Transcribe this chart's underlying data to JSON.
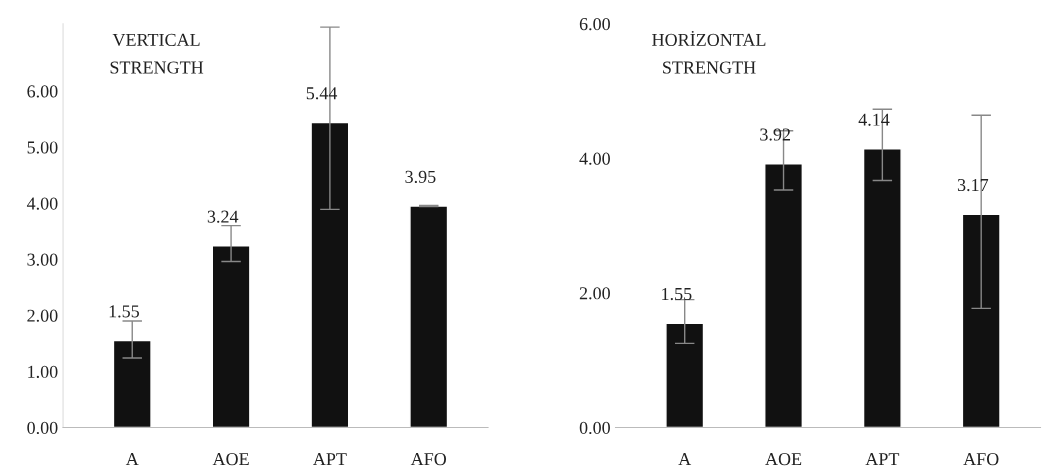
{
  "chart_data": [
    {
      "type": "bar",
      "title": "VERTICAL\nSTRENGTH",
      "categories": [
        "A",
        "AOE",
        "APT",
        "AFO"
      ],
      "values": [
        1.55,
        3.24,
        5.44,
        3.95
      ],
      "color": "#111111",
      "errors": [
        [
          1.24,
          1.9
        ],
        [
          2.96,
          3.6
        ],
        [
          3.89,
          7.14
        ],
        [
          3.94,
          3.96
        ]
      ],
      "data_labels": true,
      "ylim": [
        0,
        7.2
      ],
      "yticks": [
        {
          "value": 0,
          "label": "0.00"
        },
        {
          "value": 1,
          "label": "1.00"
        },
        {
          "value": 2,
          "label": "2.00"
        },
        {
          "value": 3,
          "label": "3.00"
        },
        {
          "value": 4,
          "label": "4.00"
        },
        {
          "value": 5,
          "label": "5.00"
        },
        {
          "value": 6,
          "label": "6.00"
        }
      ],
      "grid": false,
      "legend": false
    },
    {
      "type": "bar",
      "title": "HORİZONTAL\nSTRENGTH",
      "categories": [
        "A",
        "AOE",
        "APT",
        "AFO"
      ],
      "values": [
        1.55,
        3.92,
        4.14,
        3.17
      ],
      "color": "#111111",
      "errors": [
        [
          1.25,
          1.9
        ],
        [
          3.53,
          4.41
        ],
        [
          3.67,
          4.73
        ],
        [
          1.77,
          4.64
        ]
      ],
      "data_labels": true,
      "ylim": [
        0,
        6
      ],
      "yticks": [
        {
          "value": 0,
          "label": "0.00"
        },
        {
          "value": 2,
          "label": "2.00"
        },
        {
          "value": 4,
          "label": "4.00"
        },
        {
          "value": 6,
          "label": "6.00"
        }
      ],
      "grid": false,
      "legend": false
    }
  ]
}
